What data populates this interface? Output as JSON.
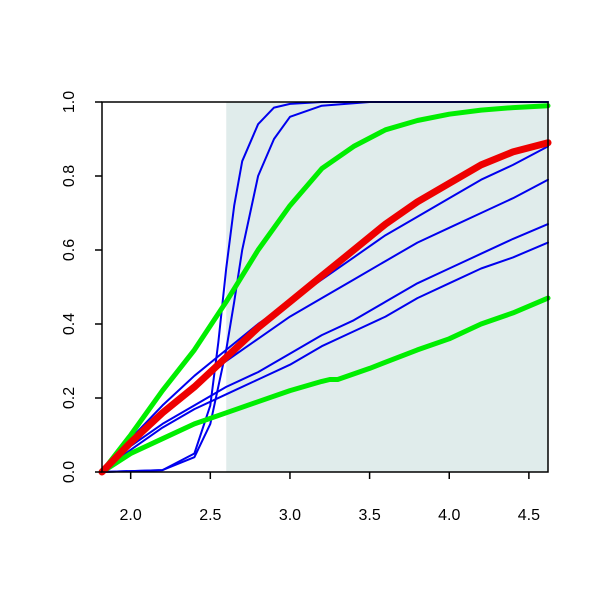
{
  "chart_data": {
    "type": "line",
    "title": "",
    "xlabel": "",
    "ylabel": "",
    "xlim": [
      1.82,
      4.62
    ],
    "ylim": [
      0,
      1
    ],
    "x_ticks": [
      "2.0",
      "2.5",
      "3.0",
      "3.5",
      "4.0",
      "4.5"
    ],
    "y_ticks": [
      "0.0",
      "0.2",
      "0.4",
      "0.6",
      "0.8",
      "1.0"
    ],
    "shaded_region": {
      "x_from": 2.6,
      "x_to": 4.62,
      "color": "#e0eceb"
    },
    "grid": false,
    "legend": "none",
    "series": [
      {
        "color": "#0000ee",
        "width": 2,
        "points": [
          [
            1.82,
            0.0
          ],
          [
            2.2,
            0.005
          ],
          [
            2.4,
            0.05
          ],
          [
            2.5,
            0.18
          ],
          [
            2.55,
            0.35
          ],
          [
            2.6,
            0.55
          ],
          [
            2.65,
            0.72
          ],
          [
            2.7,
            0.84
          ],
          [
            2.8,
            0.94
          ],
          [
            2.9,
            0.985
          ],
          [
            3.0,
            0.995
          ],
          [
            3.2,
            1.0
          ],
          [
            4.62,
            1.0
          ]
        ]
      },
      {
        "color": "#0000ee",
        "width": 2,
        "points": [
          [
            1.82,
            0.0
          ],
          [
            2.2,
            0.005
          ],
          [
            2.4,
            0.04
          ],
          [
            2.5,
            0.13
          ],
          [
            2.6,
            0.33
          ],
          [
            2.65,
            0.46
          ],
          [
            2.7,
            0.6
          ],
          [
            2.8,
            0.8
          ],
          [
            2.9,
            0.9
          ],
          [
            3.0,
            0.96
          ],
          [
            3.2,
            0.99
          ],
          [
            3.5,
            1.0
          ],
          [
            4.62,
            1.0
          ]
        ]
      },
      {
        "color": "#0000ee",
        "width": 2,
        "points": [
          [
            1.82,
            0.0
          ],
          [
            2.0,
            0.09
          ],
          [
            2.2,
            0.18
          ],
          [
            2.4,
            0.26
          ],
          [
            2.6,
            0.33
          ],
          [
            2.8,
            0.4
          ],
          [
            3.0,
            0.46
          ],
          [
            3.2,
            0.52
          ],
          [
            3.4,
            0.58
          ],
          [
            3.6,
            0.64
          ],
          [
            3.8,
            0.69
          ],
          [
            4.0,
            0.74
          ],
          [
            4.2,
            0.79
          ],
          [
            4.4,
            0.83
          ],
          [
            4.62,
            0.88
          ]
        ]
      },
      {
        "color": "#0000ee",
        "width": 2,
        "points": [
          [
            1.82,
            0.0
          ],
          [
            2.0,
            0.08
          ],
          [
            2.2,
            0.16
          ],
          [
            2.4,
            0.23
          ],
          [
            2.6,
            0.3
          ],
          [
            2.8,
            0.36
          ],
          [
            3.0,
            0.42
          ],
          [
            3.2,
            0.47
          ],
          [
            3.4,
            0.52
          ],
          [
            3.6,
            0.57
          ],
          [
            3.8,
            0.62
          ],
          [
            4.0,
            0.66
          ],
          [
            4.2,
            0.7
          ],
          [
            4.4,
            0.74
          ],
          [
            4.62,
            0.79
          ]
        ]
      },
      {
        "color": "#0000ee",
        "width": 2,
        "points": [
          [
            1.82,
            0.0
          ],
          [
            2.0,
            0.07
          ],
          [
            2.2,
            0.13
          ],
          [
            2.4,
            0.18
          ],
          [
            2.6,
            0.23
          ],
          [
            2.8,
            0.27
          ],
          [
            3.0,
            0.32
          ],
          [
            3.2,
            0.37
          ],
          [
            3.4,
            0.41
          ],
          [
            3.6,
            0.46
          ],
          [
            3.8,
            0.51
          ],
          [
            4.0,
            0.55
          ],
          [
            4.2,
            0.59
          ],
          [
            4.4,
            0.63
          ],
          [
            4.62,
            0.67
          ]
        ]
      },
      {
        "color": "#0000ee",
        "width": 2,
        "points": [
          [
            1.82,
            0.0
          ],
          [
            2.0,
            0.06
          ],
          [
            2.2,
            0.12
          ],
          [
            2.4,
            0.17
          ],
          [
            2.6,
            0.21
          ],
          [
            2.8,
            0.25
          ],
          [
            3.0,
            0.29
          ],
          [
            3.2,
            0.34
          ],
          [
            3.4,
            0.38
          ],
          [
            3.6,
            0.42
          ],
          [
            3.8,
            0.47
          ],
          [
            4.0,
            0.51
          ],
          [
            4.2,
            0.55
          ],
          [
            4.4,
            0.58
          ],
          [
            4.62,
            0.62
          ]
        ]
      },
      {
        "color": "#00ee00",
        "width": 5,
        "points": [
          [
            1.82,
            0.0
          ],
          [
            2.0,
            0.1
          ],
          [
            2.2,
            0.22
          ],
          [
            2.4,
            0.33
          ],
          [
            2.6,
            0.46
          ],
          [
            2.8,
            0.6
          ],
          [
            3.0,
            0.72
          ],
          [
            3.2,
            0.82
          ],
          [
            3.4,
            0.88
          ],
          [
            3.6,
            0.925
          ],
          [
            3.8,
            0.95
          ],
          [
            4.0,
            0.967
          ],
          [
            4.2,
            0.978
          ],
          [
            4.4,
            0.985
          ],
          [
            4.62,
            0.99
          ]
        ]
      },
      {
        "color": "#00ee00",
        "width": 5,
        "points": [
          [
            1.82,
            0.0
          ],
          [
            2.0,
            0.05
          ],
          [
            2.2,
            0.09
          ],
          [
            2.4,
            0.13
          ],
          [
            2.6,
            0.16
          ],
          [
            2.8,
            0.19
          ],
          [
            3.0,
            0.22
          ],
          [
            3.2,
            0.245
          ],
          [
            3.25,
            0.25
          ],
          [
            3.3,
            0.25
          ],
          [
            3.5,
            0.28
          ],
          [
            3.8,
            0.33
          ],
          [
            4.0,
            0.36
          ],
          [
            4.2,
            0.4
          ],
          [
            4.4,
            0.43
          ],
          [
            4.62,
            0.47
          ]
        ]
      },
      {
        "color": "#ee0000",
        "width": 7,
        "points": [
          [
            1.82,
            0.0
          ],
          [
            2.0,
            0.08
          ],
          [
            2.2,
            0.16
          ],
          [
            2.4,
            0.23
          ],
          [
            2.6,
            0.31
          ],
          [
            2.8,
            0.39
          ],
          [
            3.0,
            0.46
          ],
          [
            3.2,
            0.53
          ],
          [
            3.4,
            0.6
          ],
          [
            3.6,
            0.67
          ],
          [
            3.8,
            0.73
          ],
          [
            4.0,
            0.78
          ],
          [
            4.2,
            0.83
          ],
          [
            4.4,
            0.865
          ],
          [
            4.62,
            0.89
          ]
        ]
      }
    ]
  }
}
